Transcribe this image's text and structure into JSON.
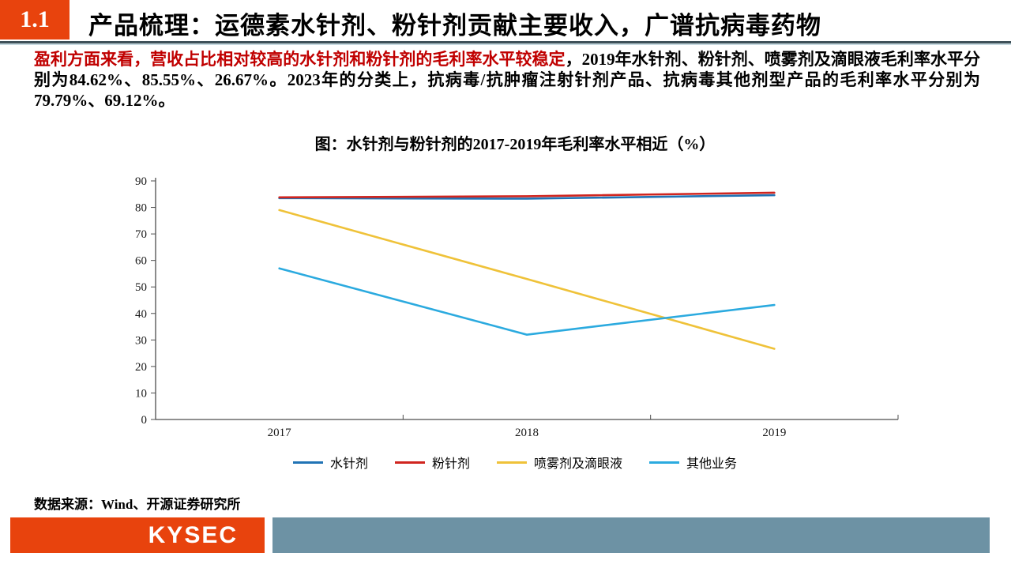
{
  "header": {
    "section": "1.1",
    "title": "产品梳理：运德素水针剂、粉针剂贡献主要收入，广谱抗病毒药物"
  },
  "paragraph": {
    "highlight": "盈利方面来看，营收占比相对较高的水针剂和粉针剂的毛利率水平较稳定",
    "rest": "，2019年水针剂、粉针剂、喷雾剂及滴眼液毛利率水平分别为84.62%、85.55%、26.67%。2023年的分类上，抗病毒/抗肿瘤注射针剂产品、抗病毒其他剂型产品的毛利率水平分别为79.79%、69.12%。"
  },
  "chart_data": {
    "type": "line",
    "title": "图：水针剂与粉针剂的2017-2019年毛利率水平相近（%）",
    "categories": [
      "2017",
      "2018",
      "2019"
    ],
    "series": [
      {
        "name": "水针剂",
        "color": "#2173B5",
        "values": [
          83.5,
          83.3,
          84.62
        ]
      },
      {
        "name": "粉针剂",
        "color": "#D0251F",
        "values": [
          83.8,
          84.2,
          85.55
        ]
      },
      {
        "name": "喷雾剂及滴眼液",
        "color": "#EFC239",
        "values": [
          79.0,
          53.0,
          26.67
        ]
      },
      {
        "name": "其他业务",
        "color": "#2BAADF",
        "values": [
          57.0,
          32.0,
          43.2
        ]
      }
    ],
    "ylim": [
      0,
      90
    ],
    "ytick_step": 10,
    "xlabel": "",
    "ylabel": "",
    "grid": false,
    "legend_position": "bottom"
  },
  "source": "数据来源：Wind、开源证券研究所",
  "footer": {
    "logo": "KYSEC"
  },
  "colors": {
    "accent": "#E8430D",
    "body_highlight": "#C00000",
    "header_rule_dark": "#3F5159",
    "header_rule_light": "#C6D9E0",
    "footer_gray": "#6D92A4",
    "axis": "#4D4D4D"
  }
}
